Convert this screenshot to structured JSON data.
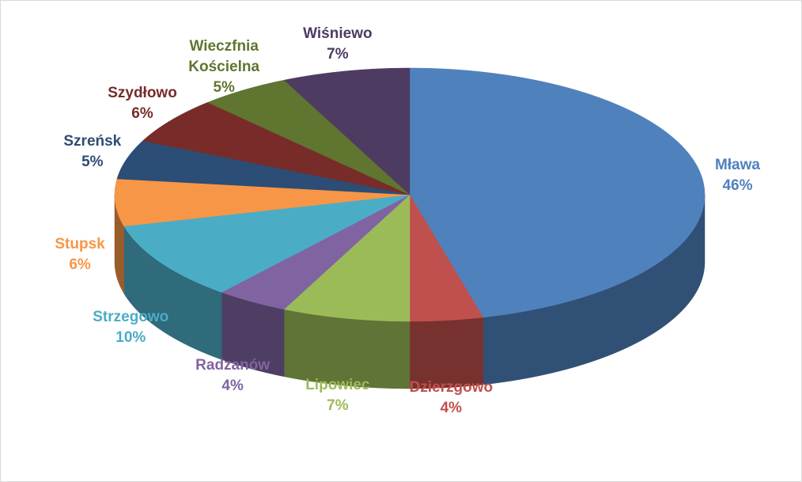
{
  "chart_data": {
    "type": "pie3d",
    "categories": [
      "Mława",
      "Dzierzgowo",
      "Lipowiec",
      "Radzanów",
      "Strzegowo",
      "Stupsk",
      "Szreńsk",
      "Szydłowo",
      "Wieczfnia Kościelna",
      "Wiśniewo"
    ],
    "values": [
      46,
      4,
      7,
      4,
      10,
      6,
      5,
      6,
      5,
      7
    ],
    "value_labels": [
      "46%",
      "4%",
      "7%",
      "4%",
      "10%",
      "6%",
      "5%",
      "6%",
      "5%",
      "7%"
    ],
    "colors": [
      "#4f81bd",
      "#c0504d",
      "#9bbb59",
      "#8064a2",
      "#4bacc6",
      "#f79646",
      "#2c4d75",
      "#772c2a",
      "#5f7530",
      "#4d3b62"
    ]
  }
}
